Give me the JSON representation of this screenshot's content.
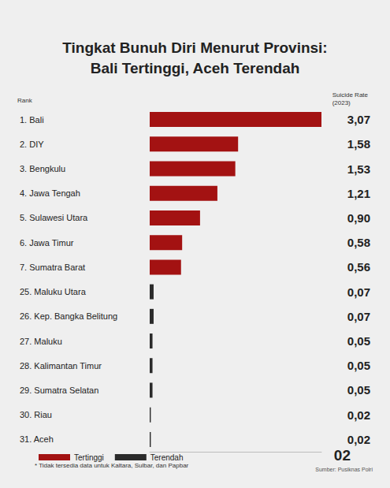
{
  "chart_data": {
    "type": "bar",
    "title": "Tingkat Bunuh Diri Menurut Provinsi:\nBali Tertinggi, Aceh Terendah",
    "y_label": "Rank",
    "value_label": "Suicide Rate\n(2023)",
    "categories": [
      "1. Bali",
      "2. DIY",
      "3. Bengkulu",
      "4. Jawa Tengah",
      "5. Sulawesi Utara",
      "6. Jawa Timur",
      "7. Sumatra Barat",
      "25. Maluku Utara",
      "26. Kep. Bangka Belitung",
      "27. Maluku",
      "28. Kalimantan Timur",
      "29. Sumatra Selatan",
      "30. Riau",
      "31. Aceh"
    ],
    "series": [
      {
        "name": "Tertinggi",
        "color": "#a31212",
        "values": [
          3.07,
          1.58,
          1.53,
          1.21,
          0.9,
          0.58,
          0.56,
          null,
          null,
          null,
          null,
          null,
          null,
          null
        ],
        "value_labels": [
          "3,07",
          "1,58",
          "1,53",
          "1,21",
          "0,90",
          "0,58",
          "0,56",
          null,
          null,
          null,
          null,
          null,
          null,
          null
        ]
      },
      {
        "name": "Terendah",
        "color": "#2b2b2b",
        "values": [
          null,
          null,
          null,
          null,
          null,
          null,
          null,
          0.07,
          0.07,
          0.05,
          0.05,
          0.05,
          0.02,
          0.02
        ],
        "value_labels": [
          null,
          null,
          null,
          null,
          null,
          null,
          null,
          "0,07",
          "0,07",
          "0,05",
          "0,05",
          "0,05",
          "0,02",
          "0,02"
        ]
      }
    ],
    "orientation": "horizontal",
    "xlim": [
      0,
      3.07
    ],
    "xticks": [],
    "grid": false,
    "data_labels": true,
    "tick_labels": "y",
    "legend": "lower left",
    "annotations": [
      "* Tidak tersedia data untuk Kaltara, Sulbar, dan Papbar",
      "02",
      "Sumber: Pusiknas Polri"
    ]
  }
}
